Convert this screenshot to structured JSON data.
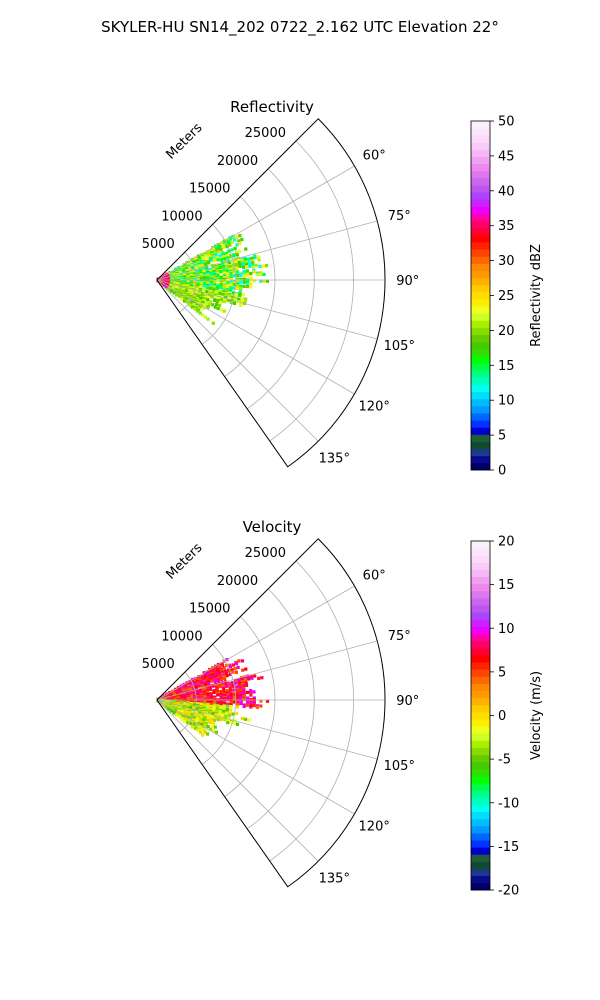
{
  "suptitle": "SKYLER-HU  SN14_202  0722_2.162 UTC Elevation 22°",
  "chart_data": [
    {
      "type": "polar-sector",
      "title": "Reflectivity",
      "radial_label": "Meters",
      "radial_ticks": [
        "5000",
        "10000",
        "15000",
        "20000",
        "25000"
      ],
      "radial_tick_values": [
        5000,
        10000,
        15000,
        20000,
        25000
      ],
      "r_max": 29000,
      "angle_range": [
        45,
        145
      ],
      "angle_ticks": [
        "60°",
        "75°",
        "90°",
        "105°",
        "120°",
        "135°"
      ],
      "angle_tick_values": [
        60,
        75,
        90,
        105,
        120,
        135
      ],
      "grid": true,
      "colorbar": {
        "label": "Reflectivity dBZ",
        "range": [
          0,
          50
        ],
        "ticks": [
          "0",
          "5",
          "10",
          "15",
          "20",
          "25",
          "30",
          "35",
          "40",
          "45",
          "50"
        ],
        "tick_values": [
          0,
          5,
          10,
          15,
          20,
          25,
          30,
          35,
          40,
          45,
          50
        ],
        "colors": [
          "#000066",
          "#0a0a8c",
          "#1b3b8a",
          "#124a2e",
          "#1e5c3a",
          "#0000cc",
          "#0033ff",
          "#0066ff",
          "#0099ff",
          "#00bbff",
          "#00ddff",
          "#00ffee",
          "#00ffbb",
          "#00ff88",
          "#00ff44",
          "#00ff00",
          "#33dd00",
          "#44cc00",
          "#66cc00",
          "#88dd00",
          "#aaee00",
          "#ccff22",
          "#eeff22",
          "#ffee00",
          "#ffdd00",
          "#ffcc00",
          "#ffb000",
          "#ff9900",
          "#ff8800",
          "#ff6600",
          "#ff4400",
          "#ff2200",
          "#ff0000",
          "#ff0033",
          "#ff0066",
          "#ff00aa",
          "#ee00ff",
          "#cc22ff",
          "#aa44ff",
          "#bb55ee",
          "#cc66ee",
          "#dd77ee",
          "#ee88ee",
          "#f0a0f0",
          "#f5b8f5",
          "#f8ccf8",
          "#fadcfa",
          "#fbe6fb",
          "#fdf0fd"
        ]
      }
    },
    {
      "type": "polar-sector",
      "title": "Velocity",
      "radial_label": "Meters",
      "radial_ticks": [
        "5000",
        "10000",
        "15000",
        "20000",
        "25000"
      ],
      "radial_tick_values": [
        5000,
        10000,
        15000,
        20000,
        25000
      ],
      "r_max": 29000,
      "angle_range": [
        45,
        145
      ],
      "angle_ticks": [
        "60°",
        "75°",
        "90°",
        "105°",
        "120°",
        "135°"
      ],
      "angle_tick_values": [
        60,
        75,
        90,
        105,
        120,
        135
      ],
      "grid": true,
      "colorbar": {
        "label": "Velocity (m/s)",
        "range": [
          -20,
          20
        ],
        "ticks": [
          "-20",
          "-15",
          "-10",
          "-5",
          "0",
          "5",
          "10",
          "15",
          "20"
        ],
        "tick_values": [
          -20,
          -15,
          -10,
          -5,
          0,
          5,
          10,
          15,
          20
        ],
        "colors": [
          "#000066",
          "#0a0a8c",
          "#1b3b8a",
          "#124a2e",
          "#1e5c3a",
          "#0000cc",
          "#0033ff",
          "#0066ff",
          "#0099ff",
          "#00bbff",
          "#00ddff",
          "#00ffee",
          "#00ffbb",
          "#00ff88",
          "#00ff44",
          "#00ff00",
          "#33dd00",
          "#44cc00",
          "#66cc00",
          "#88dd00",
          "#aaee00",
          "#ccff22",
          "#eeff22",
          "#ffee00",
          "#ffdd00",
          "#ffcc00",
          "#ffb000",
          "#ff9900",
          "#ff8800",
          "#ff6600",
          "#ff4400",
          "#ff2200",
          "#ff0000",
          "#ff0033",
          "#ff0066",
          "#ff00aa",
          "#ee00ff",
          "#cc22ff",
          "#aa44ff",
          "#bb55ee",
          "#cc66ee",
          "#dd77ee",
          "#ee88ee",
          "#f0a0f0",
          "#f5b8f5",
          "#f8ccf8",
          "#fadcfa",
          "#fbe6fb",
          "#fdf0fd"
        ]
      }
    }
  ]
}
